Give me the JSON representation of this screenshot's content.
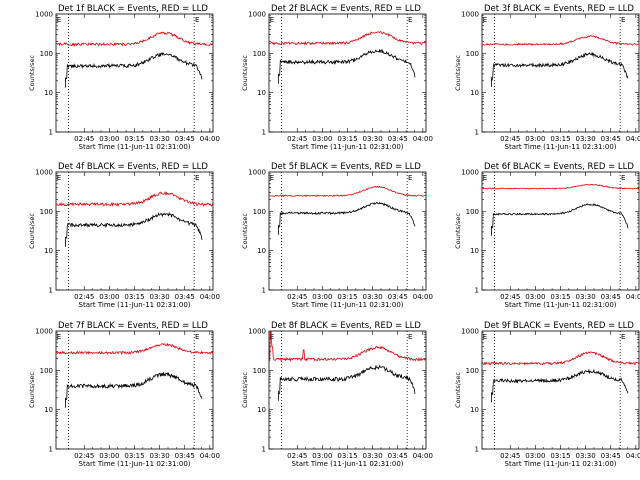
{
  "colors": {
    "events": "#000000",
    "lld": "#e8000b",
    "axes": "#000000",
    "background": "#ffffff"
  },
  "chart_data": [
    {
      "type": "line",
      "detector": "1f",
      "title": "Det 1f BLACK = Events, RED = LLD",
      "xlabel": "Start Time (11-Jun-11 02:31:00)",
      "ylabel": "Counts/sec",
      "xlim": [
        0,
        100
      ],
      "ylim": [
        1,
        1000
      ],
      "yscale": "log",
      "x_tick_labels": [
        "02:45",
        "03:00",
        "03:15",
        "03:30",
        "03:45",
        "04:00"
      ],
      "y_tick_labels": [
        "1",
        "10",
        "100",
        "1000"
      ],
      "marker_label": "E",
      "series": [
        {
          "name": "Events",
          "color": "#000000",
          "base": 48,
          "peak": 95,
          "noise": 0.1,
          "x_range": [
            6,
            93
          ]
        },
        {
          "name": "LLD",
          "color": "#e8000b",
          "base": 170,
          "peak": 330,
          "noise": 0.08,
          "x_range": [
            0,
            100
          ]
        }
      ]
    },
    {
      "type": "line",
      "detector": "2f",
      "title": "Det 2f BLACK = Events, RED = LLD",
      "xlabel": "Start Time (11-Jun-11 02:31:00)",
      "ylabel": "Counts/sec",
      "xlim": [
        0,
        100
      ],
      "ylim": [
        1,
        1000
      ],
      "yscale": "log",
      "x_tick_labels": [
        "02:45",
        "03:00",
        "03:15",
        "03:30",
        "03:45",
        "04:00"
      ],
      "y_tick_labels": [
        "1",
        "10",
        "100",
        "1000"
      ],
      "marker_label": "E",
      "series": [
        {
          "name": "Events",
          "color": "#000000",
          "base": 60,
          "peak": 115,
          "noise": 0.1,
          "x_range": [
            6,
            93
          ]
        },
        {
          "name": "LLD",
          "color": "#e8000b",
          "base": 180,
          "peak": 350,
          "noise": 0.07,
          "x_range": [
            0,
            100
          ]
        }
      ]
    },
    {
      "type": "line",
      "detector": "3f",
      "title": "Det 3f BLACK = Events, RED = LLD",
      "xlabel": "Start Time (11-Jun-11 02:31:00)",
      "ylabel": "Counts/sec",
      "xlim": [
        0,
        100
      ],
      "ylim": [
        1,
        1000
      ],
      "yscale": "log",
      "x_tick_labels": [
        "02:45",
        "03:00",
        "03:15",
        "03:30",
        "03:45",
        "04:00"
      ],
      "y_tick_labels": [
        "1",
        "10",
        "100",
        "1000"
      ],
      "marker_label": "E",
      "series": [
        {
          "name": "Events",
          "color": "#000000",
          "base": 50,
          "peak": 95,
          "noise": 0.1,
          "x_range": [
            6,
            93
          ]
        },
        {
          "name": "LLD",
          "color": "#e8000b",
          "base": 170,
          "peak": 270,
          "noise": 0.05,
          "x_range": [
            0,
            100
          ]
        }
      ]
    },
    {
      "type": "line",
      "detector": "4f",
      "title": "Det 4f BLACK = Events, RED = LLD",
      "xlabel": "Start Time (11-Jun-11 02:31:00)",
      "ylabel": "Counts/sec",
      "xlim": [
        0,
        100
      ],
      "ylim": [
        1,
        1000
      ],
      "yscale": "log",
      "x_tick_labels": [
        "02:45",
        "03:00",
        "03:15",
        "03:30",
        "03:45",
        "04:00"
      ],
      "y_tick_labels": [
        "1",
        "10",
        "100",
        "1000"
      ],
      "marker_label": "E",
      "series": [
        {
          "name": "Events",
          "color": "#000000",
          "base": 45,
          "peak": 85,
          "noise": 0.1,
          "x_range": [
            6,
            93
          ]
        },
        {
          "name": "LLD",
          "color": "#e8000b",
          "base": 150,
          "peak": 290,
          "noise": 0.09,
          "x_range": [
            0,
            100
          ]
        }
      ]
    },
    {
      "type": "line",
      "detector": "5f",
      "title": "Det 5f BLACK = Events, RED = LLD",
      "xlabel": "Start Time (11-Jun-11 02:31:00)",
      "ylabel": "Counts/sec",
      "xlim": [
        0,
        100
      ],
      "ylim": [
        1,
        1000
      ],
      "yscale": "log",
      "x_tick_labels": [
        "02:45",
        "03:00",
        "03:15",
        "03:30",
        "03:45",
        "04:00"
      ],
      "y_tick_labels": [
        "1",
        "10",
        "100",
        "1000"
      ],
      "marker_label": "E",
      "series": [
        {
          "name": "Events",
          "color": "#000000",
          "base": 90,
          "peak": 160,
          "noise": 0.06,
          "x_range": [
            6,
            93
          ]
        },
        {
          "name": "LLD",
          "color": "#e8000b",
          "base": 250,
          "peak": 420,
          "noise": 0.04,
          "x_range": [
            0,
            100
          ]
        }
      ]
    },
    {
      "type": "line",
      "detector": "6f",
      "title": "Det 6f BLACK = Events, RED = LLD",
      "xlabel": "Start Time (11-Jun-11 02:31:00)",
      "ylabel": "Counts/sec",
      "xlim": [
        0,
        100
      ],
      "ylim": [
        1,
        1000
      ],
      "yscale": "log",
      "x_tick_labels": [
        "02:45",
        "03:00",
        "03:15",
        "03:30",
        "03:45",
        "04:00"
      ],
      "y_tick_labels": [
        "1",
        "10",
        "100",
        "1000"
      ],
      "marker_label": "E",
      "series": [
        {
          "name": "Events",
          "color": "#000000",
          "base": 85,
          "peak": 150,
          "noise": 0.05,
          "x_range": [
            6,
            93
          ]
        },
        {
          "name": "LLD",
          "color": "#e8000b",
          "base": 380,
          "peak": 480,
          "noise": 0.03,
          "x_range": [
            0,
            100
          ]
        }
      ]
    },
    {
      "type": "line",
      "detector": "7f",
      "title": "Det 7f BLACK = Events, RED = LLD",
      "xlabel": "Start Time (11-Jun-11 02:31:00)",
      "ylabel": "Counts/sec",
      "xlim": [
        0,
        100
      ],
      "ylim": [
        1,
        1000
      ],
      "yscale": "log",
      "x_tick_labels": [
        "02:45",
        "03:00",
        "03:15",
        "03:30",
        "03:45",
        "04:00"
      ],
      "y_tick_labels": [
        "1",
        "10",
        "100",
        "1000"
      ],
      "marker_label": "E",
      "series": [
        {
          "name": "Events",
          "color": "#000000",
          "base": 40,
          "peak": 80,
          "noise": 0.12,
          "x_range": [
            6,
            93
          ]
        },
        {
          "name": "LLD",
          "color": "#e8000b",
          "base": 280,
          "peak": 450,
          "noise": 0.07,
          "x_range": [
            0,
            100
          ]
        }
      ]
    },
    {
      "type": "line",
      "detector": "8f",
      "title": "Det 8f BLACK = Events, RED = LLD",
      "xlabel": "Start Time (11-Jun-11 02:31:00)",
      "ylabel": "Counts/sec",
      "xlim": [
        0,
        100
      ],
      "ylim": [
        1,
        1000
      ],
      "yscale": "log",
      "x_tick_labels": [
        "02:45",
        "03:00",
        "03:15",
        "03:30",
        "03:45",
        "04:00"
      ],
      "y_tick_labels": [
        "1",
        "10",
        "100",
        "1000"
      ],
      "marker_label": "E",
      "series": [
        {
          "name": "Events",
          "color": "#000000",
          "base": 60,
          "peak": 120,
          "noise": 0.12,
          "x_range": [
            6,
            93
          ],
          "spikes": [
            [
              1,
              260
            ],
            [
              2,
              160
            ]
          ]
        },
        {
          "name": "LLD",
          "color": "#e8000b",
          "base": 190,
          "peak": 380,
          "noise": 0.08,
          "x_range": [
            0,
            100
          ],
          "spikes": [
            [
              1,
              950
            ],
            [
              2,
              400
            ],
            [
              22,
              330
            ]
          ]
        }
      ]
    },
    {
      "type": "line",
      "detector": "9f",
      "title": "Det 9f BLACK = Events, RED = LLD",
      "xlabel": "Start Time (11-Jun-11 02:31:00)",
      "ylabel": "Counts/sec",
      "xlim": [
        0,
        100
      ],
      "ylim": [
        1,
        1000
      ],
      "yscale": "log",
      "x_tick_labels": [
        "02:45",
        "03:00",
        "03:15",
        "03:30",
        "03:45",
        "04:00"
      ],
      "y_tick_labels": [
        "1",
        "10",
        "100",
        "1000"
      ],
      "marker_label": "E",
      "series": [
        {
          "name": "Events",
          "color": "#000000",
          "base": 55,
          "peak": 95,
          "noise": 0.1,
          "x_range": [
            6,
            93
          ]
        },
        {
          "name": "LLD",
          "color": "#e8000b",
          "base": 150,
          "peak": 280,
          "noise": 0.07,
          "x_range": [
            0,
            100
          ]
        }
      ]
    }
  ]
}
